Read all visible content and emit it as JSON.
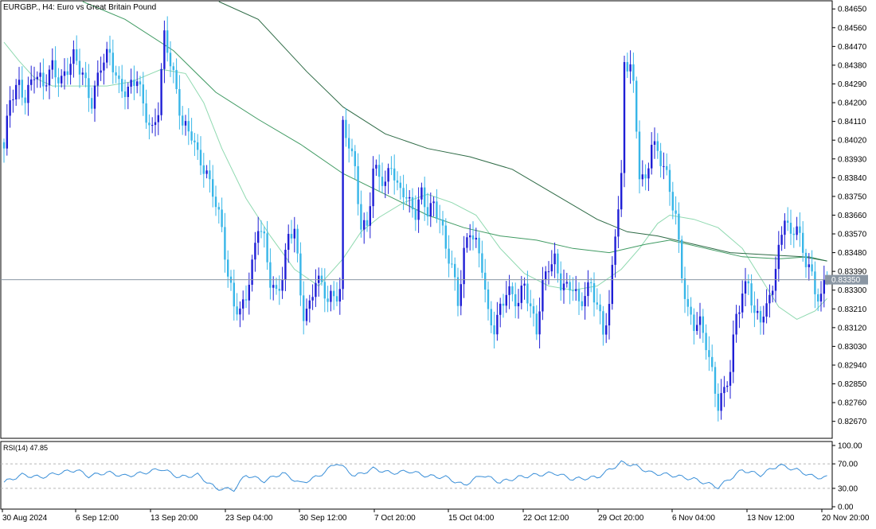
{
  "header": {
    "symbol_title": "EURGBP., H4:  Euro vs Great Britain Pound"
  },
  "price_axis": {
    "labels": [
      "0.84650",
      "0.84560",
      "0.84470",
      "0.84380",
      "0.84290",
      "0.84200",
      "0.84110",
      "0.84020",
      "0.83930",
      "0.83840",
      "0.83750",
      "0.83660",
      "0.83570",
      "0.83480",
      "0.83390",
      "0.83300",
      "0.83210",
      "0.83120",
      "0.83030",
      "0.82940",
      "0.82850",
      "0.82760",
      "0.82670"
    ],
    "current_price": "0.83350"
  },
  "rsi": {
    "title": "RSI(14) 47.85",
    "labels": [
      "100.00",
      "70.00",
      "30.00",
      "0.00"
    ]
  },
  "time_axis": {
    "labels": [
      "30 Aug 2024",
      "6 Sep 12:00",
      "13 Sep 20:00",
      "23 Sep 04:00",
      "30 Sep 12:00",
      "7 Oct 20:00",
      "15 Oct 04:00",
      "22 Oct 12:00",
      "29 Oct 20:00",
      "6 Nov 04:00",
      "13 Nov 12:00",
      "20 Nov 20:00"
    ]
  },
  "colors": {
    "bull": "#1f1fd6",
    "bear": "#38b6e8",
    "ma_fast": "#8fd9b0",
    "ma_mid": "#3f9a62",
    "ma_slow": "#2d6a45",
    "rsi_line": "#3a8fd8",
    "price_line": "#8a96a3"
  },
  "chart_data": {
    "type": "candlestick",
    "title": "EURGBP., H4:  Euro vs Great Britain Pound",
    "ylim": [
      0.826,
      0.8467
    ],
    "current_price": 0.8335,
    "anchors": [
      [
        0,
        0.8398
      ],
      [
        2,
        0.842
      ],
      [
        5,
        0.8428
      ],
      [
        7,
        0.8424
      ],
      [
        10,
        0.8435
      ],
      [
        13,
        0.8426
      ],
      [
        16,
        0.8438
      ],
      [
        19,
        0.8432
      ],
      [
        23,
        0.844
      ],
      [
        26,
        0.8434
      ],
      [
        29,
        0.8422
      ],
      [
        32,
        0.8437
      ],
      [
        35,
        0.8442
      ],
      [
        38,
        0.843
      ],
      [
        41,
        0.8426
      ],
      [
        44,
        0.843
      ],
      [
        46,
        0.8418
      ],
      [
        49,
        0.8408
      ],
      [
        51,
        0.8418
      ],
      [
        53,
        0.845
      ],
      [
        56,
        0.8432
      ],
      [
        59,
        0.8412
      ],
      [
        62,
        0.8405
      ],
      [
        64,
        0.8392
      ],
      [
        67,
        0.8385
      ],
      [
        69,
        0.838
      ],
      [
        72,
        0.836
      ],
      [
        74,
        0.8334
      ],
      [
        76,
        0.8322
      ],
      [
        78,
        0.832
      ],
      [
        80,
        0.833
      ],
      [
        82,
        0.8342
      ],
      [
        84,
        0.836
      ],
      [
        86,
        0.8352
      ],
      [
        88,
        0.8335
      ],
      [
        90,
        0.833
      ],
      [
        92,
        0.8338
      ],
      [
        94,
        0.8354
      ],
      [
        96,
        0.8358
      ],
      [
        98,
        0.8328
      ],
      [
        99,
        0.832
      ],
      [
        101,
        0.8324
      ],
      [
        103,
        0.8336
      ],
      [
        105,
        0.833
      ],
      [
        107,
        0.8324
      ],
      [
        109,
        0.8328
      ],
      [
        111,
        0.8332
      ],
      [
        112,
        0.841
      ],
      [
        114,
        0.84
      ],
      [
        116,
        0.8385
      ],
      [
        118,
        0.836
      ],
      [
        120,
        0.8362
      ],
      [
        122,
        0.839
      ],
      [
        124,
        0.8385
      ],
      [
        126,
        0.8378
      ],
      [
        128,
        0.839
      ],
      [
        130,
        0.838
      ],
      [
        132,
        0.838
      ],
      [
        134,
        0.8371
      ],
      [
        136,
        0.8365
      ],
      [
        138,
        0.8375
      ],
      [
        140,
        0.8369
      ],
      [
        142,
        0.8373
      ],
      [
        144,
        0.8365
      ],
      [
        146,
        0.8348
      ],
      [
        148,
        0.834
      ],
      [
        150,
        0.8325
      ],
      [
        152,
        0.835
      ],
      [
        154,
        0.836
      ],
      [
        156,
        0.835
      ],
      [
        158,
        0.834
      ],
      [
        160,
        0.8318
      ],
      [
        162,
        0.8314
      ],
      [
        164,
        0.8322
      ],
      [
        166,
        0.8328
      ],
      [
        168,
        0.8325
      ],
      [
        170,
        0.8324
      ],
      [
        172,
        0.8336
      ],
      [
        174,
        0.8322
      ],
      [
        176,
        0.831
      ],
      [
        178,
        0.833
      ],
      [
        180,
        0.8342
      ],
      [
        182,
        0.8346
      ],
      [
        184,
        0.8335
      ],
      [
        186,
        0.833
      ],
      [
        188,
        0.833
      ],
      [
        190,
        0.8322
      ],
      [
        192,
        0.833
      ],
      [
        194,
        0.8335
      ],
      [
        196,
        0.8322
      ],
      [
        198,
        0.8308
      ],
      [
        200,
        0.832
      ],
      [
        202,
        0.836
      ],
      [
        204,
        0.8385
      ],
      [
        205,
        0.844
      ],
      [
        207,
        0.8437
      ],
      [
        208,
        0.8425
      ],
      [
        210,
        0.8385
      ],
      [
        212,
        0.8382
      ],
      [
        214,
        0.8404
      ],
      [
        216,
        0.8396
      ],
      [
        218,
        0.8388
      ],
      [
        220,
        0.8376
      ],
      [
        222,
        0.8366
      ],
      [
        224,
        0.834
      ],
      [
        226,
        0.832
      ],
      [
        228,
        0.8312
      ],
      [
        230,
        0.8312
      ],
      [
        232,
        0.8305
      ],
      [
        234,
        0.8292
      ],
      [
        236,
        0.8276
      ],
      [
        238,
        0.828
      ],
      [
        240,
        0.829
      ],
      [
        242,
        0.8318
      ],
      [
        244,
        0.833
      ],
      [
        246,
        0.8336
      ],
      [
        248,
        0.8316
      ],
      [
        250,
        0.8315
      ],
      [
        252,
        0.832
      ],
      [
        254,
        0.8335
      ],
      [
        256,
        0.835
      ],
      [
        258,
        0.8366
      ],
      [
        260,
        0.8352
      ],
      [
        262,
        0.8362
      ],
      [
        264,
        0.8348
      ],
      [
        266,
        0.8345
      ],
      [
        268,
        0.8328
      ],
      [
        270,
        0.8325
      ],
      [
        272,
        0.8335
      ]
    ],
    "ma_fast": [
      [
        0,
        0.8449
      ],
      [
        5,
        0.844
      ],
      [
        10,
        0.8432
      ],
      [
        16,
        0.8428
      ],
      [
        22,
        0.8428
      ],
      [
        28,
        0.8428
      ],
      [
        34,
        0.8428
      ],
      [
        42,
        0.843
      ],
      [
        52,
        0.8436
      ],
      [
        60,
        0.8434
      ],
      [
        66,
        0.842
      ],
      [
        72,
        0.8398
      ],
      [
        80,
        0.8374
      ],
      [
        88,
        0.8356
      ],
      [
        96,
        0.834
      ],
      [
        104,
        0.8332
      ],
      [
        112,
        0.8345
      ],
      [
        118,
        0.8358
      ],
      [
        124,
        0.8365
      ],
      [
        132,
        0.8372
      ],
      [
        140,
        0.8376
      ],
      [
        148,
        0.8372
      ],
      [
        156,
        0.8366
      ],
      [
        164,
        0.835
      ],
      [
        172,
        0.8338
      ],
      [
        180,
        0.8332
      ],
      [
        188,
        0.833
      ],
      [
        196,
        0.8332
      ],
      [
        204,
        0.834
      ],
      [
        210,
        0.835
      ],
      [
        216,
        0.8362
      ],
      [
        220,
        0.8366
      ],
      [
        228,
        0.8364
      ],
      [
        236,
        0.836
      ],
      [
        244,
        0.835
      ],
      [
        250,
        0.8336
      ],
      [
        256,
        0.8322
      ],
      [
        262,
        0.8316
      ],
      [
        268,
        0.832
      ],
      [
        272,
        0.8326
      ]
    ],
    "ma_mid": [
      [
        26,
        0.8475
      ],
      [
        40,
        0.846
      ],
      [
        56,
        0.8445
      ],
      [
        70,
        0.8425
      ],
      [
        84,
        0.8412
      ],
      [
        98,
        0.84
      ],
      [
        112,
        0.8386
      ],
      [
        126,
        0.8376
      ],
      [
        140,
        0.8366
      ],
      [
        152,
        0.836
      ],
      [
        164,
        0.8356
      ],
      [
        176,
        0.8354
      ],
      [
        188,
        0.835
      ],
      [
        200,
        0.8348
      ],
      [
        212,
        0.8352
      ],
      [
        220,
        0.8354
      ],
      [
        232,
        0.835
      ],
      [
        244,
        0.8346
      ],
      [
        256,
        0.8345
      ],
      [
        266,
        0.8346
      ],
      [
        272,
        0.8344
      ]
    ],
    "ma_slow": [
      [
        71,
        0.8478
      ],
      [
        84,
        0.846
      ],
      [
        100,
        0.8435
      ],
      [
        112,
        0.8418
      ],
      [
        126,
        0.8405
      ],
      [
        140,
        0.8398
      ],
      [
        154,
        0.8394
      ],
      [
        168,
        0.8388
      ],
      [
        182,
        0.8376
      ],
      [
        196,
        0.8364
      ],
      [
        206,
        0.8358
      ],
      [
        216,
        0.8356
      ],
      [
        228,
        0.8352
      ],
      [
        240,
        0.8348
      ],
      [
        252,
        0.8347
      ],
      [
        264,
        0.8346
      ],
      [
        272,
        0.8344
      ]
    ],
    "rsi": {
      "ylim": [
        0,
        100
      ],
      "levels": [
        70,
        30
      ],
      "anchors": [
        [
          0,
          40
        ],
        [
          6,
          52
        ],
        [
          12,
          48
        ],
        [
          18,
          55
        ],
        [
          24,
          60
        ],
        [
          28,
          50
        ],
        [
          34,
          56
        ],
        [
          40,
          50
        ],
        [
          46,
          55
        ],
        [
          52,
          62
        ],
        [
          58,
          48
        ],
        [
          64,
          52
        ],
        [
          70,
          30
        ],
        [
          76,
          28
        ],
        [
          80,
          52
        ],
        [
          86,
          42
        ],
        [
          92,
          55
        ],
        [
          98,
          38
        ],
        [
          104,
          50
        ],
        [
          110,
          72
        ],
        [
          116,
          50
        ],
        [
          122,
          62
        ],
        [
          128,
          55
        ],
        [
          134,
          58
        ],
        [
          140,
          50
        ],
        [
          146,
          48
        ],
        [
          152,
          35
        ],
        [
          158,
          52
        ],
        [
          164,
          40
        ],
        [
          170,
          48
        ],
        [
          176,
          52
        ],
        [
          182,
          55
        ],
        [
          188,
          45
        ],
        [
          196,
          48
        ],
        [
          204,
          72
        ],
        [
          208,
          68
        ],
        [
          214,
          55
        ],
        [
          220,
          52
        ],
        [
          228,
          45
        ],
        [
          236,
          32
        ],
        [
          244,
          60
        ],
        [
          250,
          52
        ],
        [
          256,
          68
        ],
        [
          262,
          60
        ],
        [
          268,
          48
        ],
        [
          272,
          48
        ]
      ]
    }
  }
}
